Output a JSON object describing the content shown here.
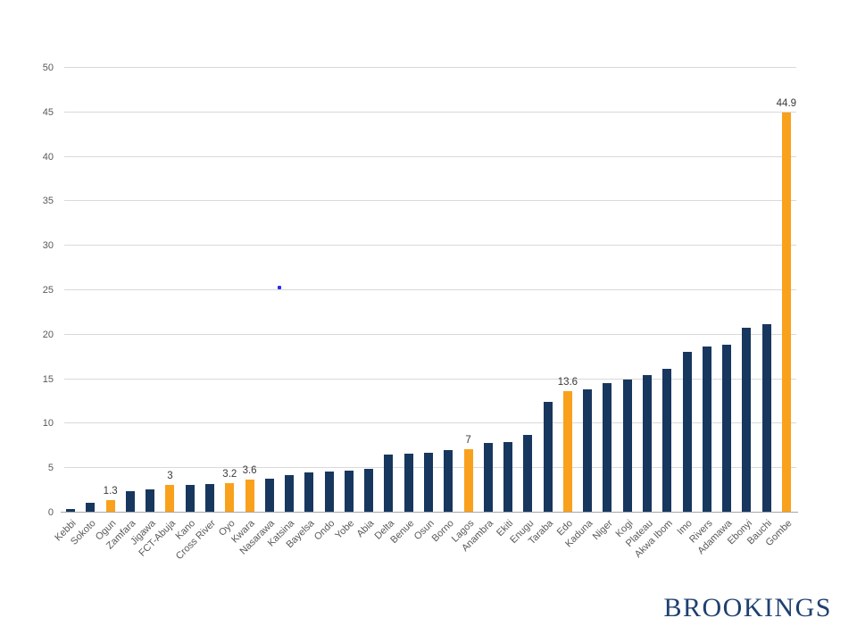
{
  "chart_data": {
    "type": "bar",
    "title": "",
    "xlabel": "",
    "ylabel": "",
    "categories": [
      "Kebbi",
      "Sokoto",
      "Ogun",
      "Zamfara",
      "Jigawa",
      "FCT-Abuja",
      "Kano",
      "Cross River",
      "Oyo",
      "Kwara",
      "Nasarawa",
      "Katsina",
      "Bayelsa",
      "Ondo",
      "Yobe",
      "Abia",
      "Delta",
      "Benue",
      "Osun",
      "Borno",
      "Lagos",
      "Anambra",
      "Ekiti",
      "Enugu",
      "Taraba",
      "Edo",
      "Kaduna",
      "Niger",
      "Kogi",
      "Plateau",
      "Akwa Ibom",
      "Imo",
      "Rivers",
      "Adamawa",
      "Ebonyi",
      "Bauchi",
      "Gombe"
    ],
    "values": [
      0.3,
      1.0,
      1.3,
      2.3,
      2.5,
      3,
      3.0,
      3.1,
      3.2,
      3.6,
      3.7,
      4.1,
      4.4,
      4.5,
      4.6,
      4.8,
      6.4,
      6.5,
      6.6,
      6.9,
      7,
      7.7,
      7.8,
      8.6,
      12.4,
      13.6,
      13.8,
      14.5,
      14.9,
      15.4,
      16.1,
      18,
      18.6,
      18.8,
      20.7,
      21.1,
      44.9
    ],
    "highlighted_categories": [
      "Ogun",
      "FCT-Abuja",
      "Oyo",
      "Kwara",
      "Lagos",
      "Edo",
      "Gombe"
    ],
    "data_labels": {
      "Ogun": "1.3",
      "FCT-Abuja": "3",
      "Oyo": "3.2",
      "Kwara": "3.6",
      "Lagos": "7",
      "Edo": "13.6",
      "Gombe": "44.9"
    },
    "ylim": [
      0,
      50
    ],
    "ytick_step": 5,
    "ytick_labels": [
      "0",
      "5",
      "10",
      "15",
      "20",
      "25",
      "30",
      "35",
      "40",
      "45",
      "50"
    ],
    "grid": true,
    "legend": false,
    "bar_color": "#17375e",
    "highlight_color": "#f9a11c",
    "annotations": [
      {
        "type": "stray-dot",
        "color": "#2d2df2",
        "x_fraction": 0.297,
        "value": 25.3
      }
    ]
  },
  "footer": {
    "logo_text": "BROOKINGS"
  }
}
